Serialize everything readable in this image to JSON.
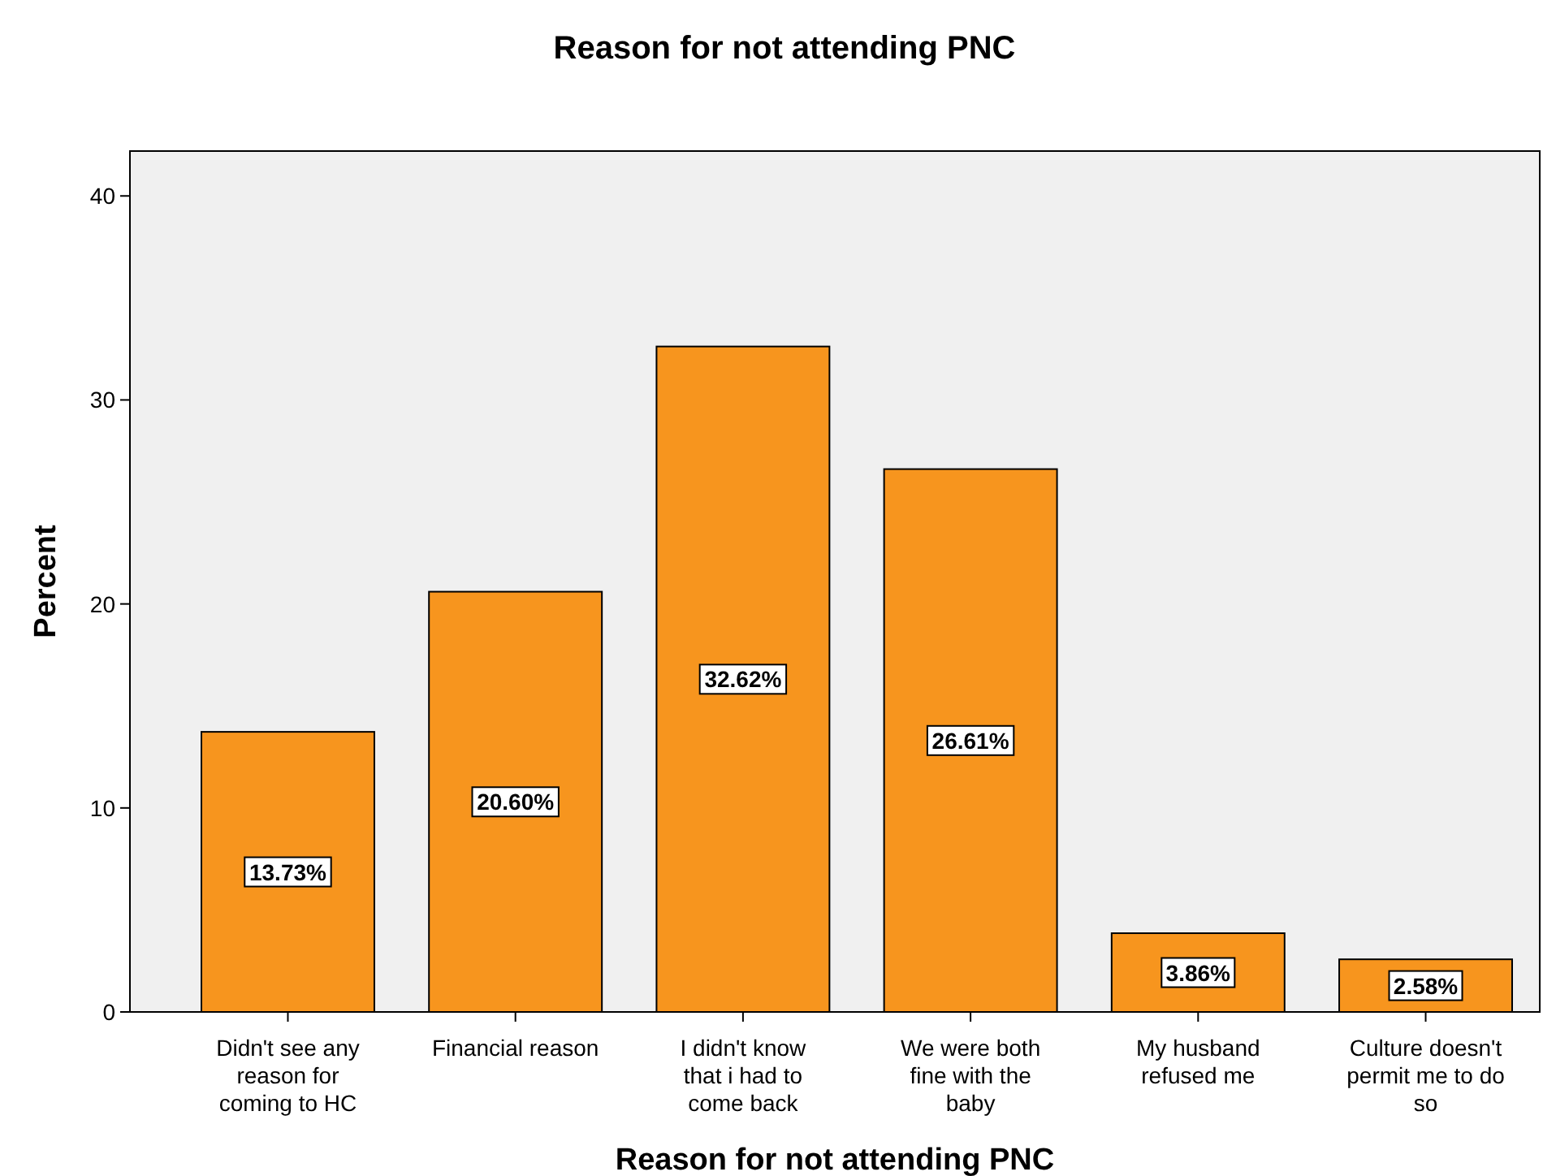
{
  "chart_data": {
    "type": "bar",
    "title": "Reason for not attending PNC",
    "xlabel": "Reason for not attending PNC",
    "ylabel": "Percent",
    "categories": [
      "Didn't see any reason for coming to HC",
      "Financial reason",
      "I didn't know that i had to come back",
      "We were both fine with the baby",
      "My husband refused me",
      "Culture doesn't permit me to do so"
    ],
    "values": [
      13.73,
      20.6,
      32.62,
      26.61,
      3.86,
      2.58
    ],
    "value_labels": [
      "13.73%",
      "20.60%",
      "32.62%",
      "26.61%",
      "3.86%",
      "2.58%"
    ],
    "color": "#f7951e",
    "ylim": [
      0,
      42.2
    ],
    "yticks": [
      0,
      10,
      20,
      30,
      40
    ],
    "grid": false
  }
}
